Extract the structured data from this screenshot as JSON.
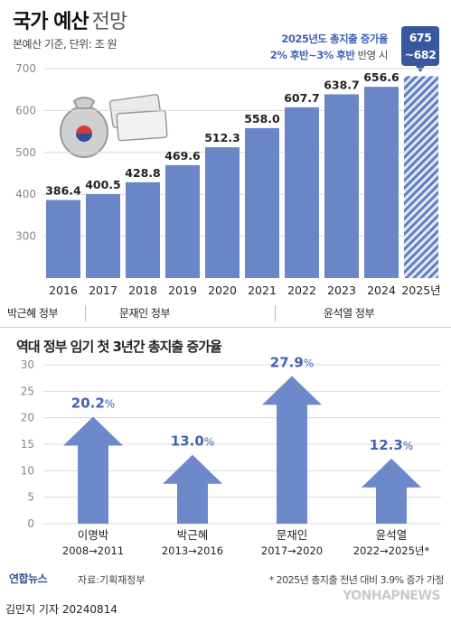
{
  "header": {
    "title_main": "국가 예산",
    "title_sub": "전망",
    "subtitle": "본예산 기준, 단위: 조 원",
    "note_line1": "2025년도 총지출 증가율",
    "note_line2_bold": "2% 후반~3% 후반",
    "note_line2_rest": " 반영 시",
    "projection_top": "675",
    "projection_bottom": "~682"
  },
  "governments": [
    "박근혜 정부",
    "문재인 정부",
    "윤석열 정부"
  ],
  "section2": {
    "title": "역대 정부 임기 첫 3년간 총지출 증가율"
  },
  "footer": {
    "logo": "연합뉴스",
    "source": "자료:기획재정부",
    "footnote": "* 2025년 총지출 전년 대비 3.9% 증가 가정",
    "credit": "김민지 기자  20240814",
    "watermark": "YONHAPNEWS"
  },
  "colors": {
    "bar": "#6a86c6",
    "bar_dark": "#37579e",
    "arrow": "#6d89c9",
    "label_blue": "#3e63b8",
    "grid": "#d9d9d9"
  },
  "chart_data": [
    {
      "type": "bar",
      "title": "국가 예산 전망",
      "categories": [
        "2016",
        "2017",
        "2018",
        "2019",
        "2020",
        "2021",
        "2022",
        "2023",
        "2024",
        "2025년"
      ],
      "values": [
        386.4,
        400.5,
        428.8,
        469.6,
        512.3,
        558.0,
        607.7,
        638.7,
        656.6,
        null
      ],
      "labels": [
        "386.4",
        "400.5",
        "428.8",
        "469.6",
        "512.3",
        "558.0",
        "607.7",
        "638.7",
        "656.6",
        ""
      ],
      "projection": {
        "category": "2025년",
        "low": 675,
        "high": 682
      },
      "ylim": [
        200,
        700
      ],
      "yticks": [
        300,
        400,
        500,
        600,
        700
      ],
      "grid": true
    },
    {
      "type": "bar",
      "title": "역대 정부 임기 첫 3년간 총지출 증가율",
      "categories": [
        "이명박",
        "박근혜",
        "문재인",
        "윤석열"
      ],
      "periods": [
        "2008→2011",
        "2013→2016",
        "2017→2020",
        "2022→2025년*"
      ],
      "values": [
        20.2,
        13.0,
        27.9,
        12.3
      ],
      "labels": [
        "20.2",
        "13.0",
        "27.9",
        "12.3"
      ],
      "unit": "%",
      "ylim": [
        0,
        30
      ],
      "yticks": [
        0,
        5,
        10,
        15,
        20,
        25,
        30
      ],
      "grid": true
    }
  ]
}
